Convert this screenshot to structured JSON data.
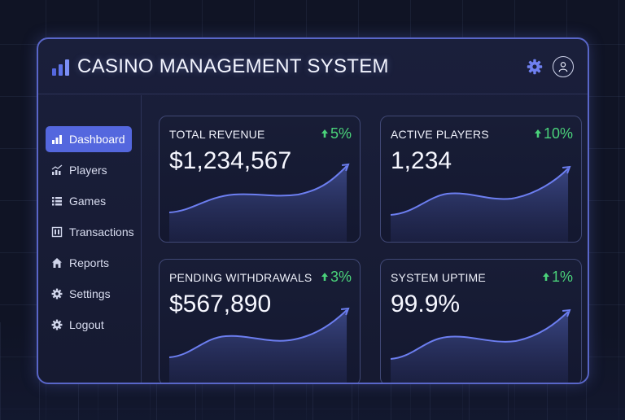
{
  "header": {
    "title": "CASINO MANAGEMENT SYSTEM",
    "logo_icon": "bar-chart-icon",
    "settings_icon": "gear-icon",
    "user_icon": "user-icon"
  },
  "sidebar": {
    "items": [
      {
        "label": "Dashboard",
        "icon": "bar-chart-icon",
        "active": true
      },
      {
        "label": "Players",
        "icon": "trend-chart-icon",
        "active": false
      },
      {
        "label": "Games",
        "icon": "list-icon",
        "active": false
      },
      {
        "label": "Transactions",
        "icon": "receipt-icon",
        "active": false
      },
      {
        "label": "Reports",
        "icon": "home-icon",
        "active": false
      },
      {
        "label": "Settings",
        "icon": "gear-icon",
        "active": false
      },
      {
        "label": "Logout",
        "icon": "gear-icon",
        "active": false
      }
    ]
  },
  "cards": [
    {
      "title": "TOTAL REVENUE",
      "value": "$1,234,567",
      "delta": "5%"
    },
    {
      "title": "ACTIVE PLAYERS",
      "value": "1,234",
      "delta": "10%"
    },
    {
      "title": "PENDING WITHDRAWALS",
      "value": "$567,890",
      "delta": "3%"
    },
    {
      "title": "SYSTEM UPTIME",
      "value": "99.9%",
      "delta": "1%"
    }
  ],
  "colors": {
    "accent": "#5467de",
    "positive": "#4ad27a",
    "border": "#5966c8",
    "background": "#101425"
  }
}
